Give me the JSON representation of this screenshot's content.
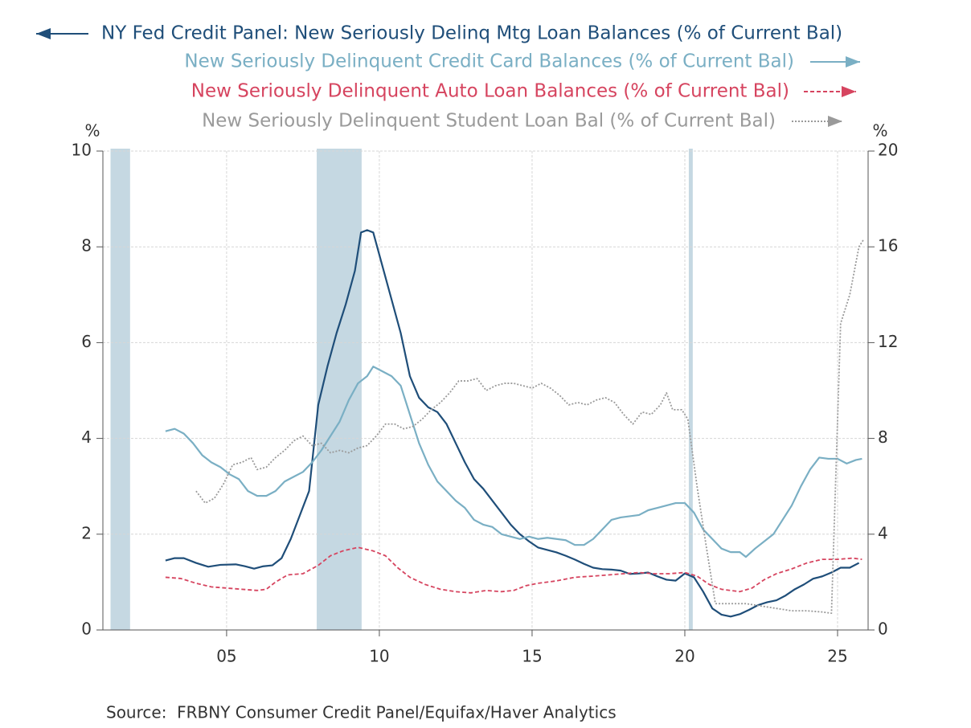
{
  "chart_data": {
    "type": "line",
    "y_unit": "%",
    "y2_unit": "%",
    "source": "Source:  FRBNY Consumer Credit Panel/Equifax/Haver Analytics",
    "xlim": [
      2000.95,
      2026.0
    ],
    "xticks": [
      {
        "value": 2005,
        "label": "05"
      },
      {
        "value": 2010,
        "label": "10"
      },
      {
        "value": 2015,
        "label": "15"
      },
      {
        "value": 2020,
        "label": "20"
      },
      {
        "value": 2025,
        "label": "25"
      }
    ],
    "ylim": [
      0,
      10
    ],
    "yticks": [
      0,
      2,
      4,
      6,
      8,
      10
    ],
    "y2lim": [
      0,
      20
    ],
    "y2ticks": [
      0,
      4,
      8,
      12,
      16,
      20
    ],
    "grid": true,
    "recessions": [
      [
        2001.2,
        2001.84
      ],
      [
        2007.95,
        2009.42
      ],
      [
        2020.13,
        2020.26
      ]
    ],
    "recession_color": "#c5d8e2",
    "series": [
      {
        "name": "NY Fed Credit Panel: New Seriously Delinq Mtg Loan Balances (% of Current Bal)",
        "color": "#1f4e79",
        "line_style": "solid",
        "axis": "y",
        "x": [
          2003.0,
          2003.3,
          2003.6,
          2004.0,
          2004.4,
          2004.8,
          2005.3,
          2005.6,
          2005.9,
          2006.2,
          2006.5,
          2006.8,
          2007.1,
          2007.4,
          2007.7,
          2008.0,
          2008.3,
          2008.6,
          2008.9,
          2009.2,
          2009.4,
          2009.6,
          2009.8,
          2010.1,
          2010.4,
          2010.7,
          2011.0,
          2011.3,
          2011.6,
          2011.9,
          2012.2,
          2012.5,
          2012.8,
          2013.1,
          2013.4,
          2013.7,
          2014.0,
          2014.3,
          2014.6,
          2014.9,
          2015.2,
          2015.5,
          2015.8,
          2016.1,
          2016.4,
          2016.7,
          2017.0,
          2017.3,
          2017.6,
          2017.9,
          2018.2,
          2018.5,
          2018.8,
          2019.1,
          2019.4,
          2019.7,
          2020.0,
          2020.3,
          2020.6,
          2020.9,
          2021.2,
          2021.5,
          2021.8,
          2022.1,
          2022.4,
          2022.7,
          2023.0,
          2023.3,
          2023.6,
          2023.9,
          2024.2,
          2024.5,
          2024.8,
          2025.1,
          2025.4,
          2025.7
        ],
        "values": [
          1.45,
          1.5,
          1.5,
          1.4,
          1.32,
          1.36,
          1.37,
          1.33,
          1.28,
          1.33,
          1.35,
          1.5,
          1.9,
          2.4,
          2.9,
          4.7,
          5.5,
          6.2,
          6.8,
          7.5,
          8.3,
          8.35,
          8.3,
          7.6,
          6.9,
          6.2,
          5.3,
          4.85,
          4.65,
          4.55,
          4.3,
          3.9,
          3.5,
          3.15,
          2.95,
          2.7,
          2.45,
          2.2,
          2.0,
          1.85,
          1.72,
          1.67,
          1.62,
          1.55,
          1.47,
          1.38,
          1.3,
          1.27,
          1.26,
          1.24,
          1.17,
          1.18,
          1.2,
          1.12,
          1.05,
          1.03,
          1.18,
          1.1,
          0.8,
          0.45,
          0.32,
          0.28,
          0.33,
          0.42,
          0.52,
          0.58,
          0.62,
          0.72,
          0.85,
          0.95,
          1.07,
          1.12,
          1.2,
          1.3,
          1.3,
          1.4
        ]
      },
      {
        "name": "New Seriously Delinquent Credit Card Balances (% of Current Bal)",
        "color": "#7aafc4",
        "line_style": "solid",
        "axis": "y2",
        "x": [
          2003.0,
          2003.3,
          2003.6,
          2003.9,
          2004.2,
          2004.5,
          2004.8,
          2005.1,
          2005.4,
          2005.7,
          2006.0,
          2006.3,
          2006.6,
          2006.9,
          2007.2,
          2007.5,
          2007.8,
          2008.1,
          2008.4,
          2008.7,
          2009.0,
          2009.3,
          2009.6,
          2009.8,
          2010.1,
          2010.4,
          2010.7,
          2011.0,
          2011.3,
          2011.6,
          2011.9,
          2012.2,
          2012.5,
          2012.8,
          2013.1,
          2013.4,
          2013.7,
          2014.0,
          2014.3,
          2014.6,
          2014.9,
          2015.2,
          2015.5,
          2015.8,
          2016.1,
          2016.4,
          2016.7,
          2017.0,
          2017.3,
          2017.6,
          2017.9,
          2018.2,
          2018.5,
          2018.8,
          2019.1,
          2019.4,
          2019.7,
          2020.0,
          2020.3,
          2020.6,
          2020.9,
          2021.2,
          2021.5,
          2021.8,
          2022.0,
          2022.3,
          2022.6,
          2022.9,
          2023.2,
          2023.5,
          2023.8,
          2024.1,
          2024.4,
          2024.7,
          2025.0,
          2025.3,
          2025.6,
          2025.8
        ],
        "values": [
          8.3,
          8.4,
          8.2,
          7.8,
          7.3,
          7.0,
          6.8,
          6.5,
          6.3,
          5.8,
          5.6,
          5.6,
          5.8,
          6.2,
          6.4,
          6.6,
          7.0,
          7.5,
          8.1,
          8.7,
          9.6,
          10.3,
          10.6,
          11.0,
          10.8,
          10.6,
          10.2,
          9.0,
          7.8,
          6.9,
          6.2,
          5.8,
          5.4,
          5.1,
          4.6,
          4.4,
          4.3,
          4.0,
          3.9,
          3.8,
          3.9,
          3.8,
          3.85,
          3.8,
          3.75,
          3.55,
          3.55,
          3.8,
          4.2,
          4.6,
          4.7,
          4.75,
          4.8,
          5.0,
          5.1,
          5.2,
          5.3,
          5.3,
          4.9,
          4.2,
          3.8,
          3.4,
          3.25,
          3.25,
          3.05,
          3.4,
          3.7,
          4.0,
          4.6,
          5.2,
          6.0,
          6.7,
          7.2,
          7.15,
          7.15,
          6.95,
          7.1,
          7.15
        ]
      },
      {
        "name": "New Seriously Delinquent Auto Loan Balances (% of Current Bal)",
        "color": "#d6445f",
        "line_style": "dashed",
        "axis": "y2",
        "x": [
          2003.0,
          2003.5,
          2004.0,
          2004.5,
          2005.0,
          2005.5,
          2006.0,
          2006.3,
          2006.6,
          2007.0,
          2007.5,
          2008.0,
          2008.4,
          2008.8,
          2009.3,
          2009.8,
          2010.2,
          2010.6,
          2011.0,
          2011.5,
          2012.0,
          2012.5,
          2013.0,
          2013.5,
          2014.0,
          2014.4,
          2014.8,
          2015.2,
          2015.8,
          2016.4,
          2017.0,
          2017.5,
          2018.0,
          2018.5,
          2019.0,
          2019.5,
          2020.0,
          2020.4,
          2020.8,
          2021.2,
          2021.8,
          2022.2,
          2022.6,
          2023.0,
          2023.5,
          2024.0,
          2024.5,
          2025.0,
          2025.5,
          2025.8
        ],
        "values": [
          2.2,
          2.15,
          1.95,
          1.8,
          1.75,
          1.7,
          1.65,
          1.7,
          2.0,
          2.3,
          2.35,
          2.7,
          3.1,
          3.3,
          3.45,
          3.3,
          3.1,
          2.6,
          2.2,
          1.9,
          1.7,
          1.6,
          1.55,
          1.65,
          1.6,
          1.65,
          1.85,
          1.95,
          2.05,
          2.2,
          2.25,
          2.3,
          2.35,
          2.4,
          2.35,
          2.35,
          2.4,
          2.25,
          1.9,
          1.7,
          1.6,
          1.75,
          2.1,
          2.35,
          2.55,
          2.8,
          2.95,
          2.95,
          3.0,
          2.95
        ]
      },
      {
        "name": "New Seriously Delinquent Student Loan Bal (% of Current Bal)",
        "color": "#9a9a9a",
        "line_style": "dotted",
        "axis": "y2",
        "x": [
          2004.0,
          2004.3,
          2004.6,
          2004.9,
          2005.2,
          2005.5,
          2005.8,
          2006.0,
          2006.3,
          2006.6,
          2006.9,
          2007.2,
          2007.5,
          2007.8,
          2008.1,
          2008.4,
          2008.7,
          2009.0,
          2009.3,
          2009.6,
          2009.9,
          2010.2,
          2010.5,
          2010.8,
          2011.1,
          2011.4,
          2011.7,
          2012.0,
          2012.3,
          2012.6,
          2012.9,
          2013.2,
          2013.5,
          2013.8,
          2014.1,
          2014.4,
          2014.7,
          2015.0,
          2015.3,
          2015.6,
          2015.9,
          2016.2,
          2016.5,
          2016.8,
          2017.1,
          2017.4,
          2017.7,
          2018.0,
          2018.3,
          2018.6,
          2018.9,
          2019.2,
          2019.4,
          2019.6,
          2019.9,
          2020.1,
          2020.4,
          2020.7,
          2021.0,
          2021.5,
          2022.0,
          2022.5,
          2023.0,
          2023.5,
          2024.0,
          2024.5,
          2024.8,
          2025.1,
          2025.4,
          2025.7,
          2025.85
        ],
        "values": [
          5.8,
          5.3,
          5.5,
          6.1,
          6.9,
          7.0,
          7.2,
          6.7,
          6.8,
          7.2,
          7.5,
          7.9,
          8.1,
          7.7,
          7.8,
          7.4,
          7.5,
          7.4,
          7.6,
          7.7,
          8.1,
          8.6,
          8.6,
          8.4,
          8.5,
          8.8,
          9.2,
          9.5,
          9.9,
          10.4,
          10.4,
          10.5,
          10.0,
          10.2,
          10.3,
          10.3,
          10.2,
          10.1,
          10.3,
          10.1,
          9.8,
          9.4,
          9.5,
          9.4,
          9.6,
          9.7,
          9.5,
          9.0,
          8.6,
          9.1,
          9.0,
          9.4,
          9.9,
          9.2,
          9.2,
          8.8,
          6.0,
          3.5,
          1.1,
          1.1,
          1.1,
          1.0,
          0.9,
          0.8,
          0.8,
          0.75,
          0.7,
          12.8,
          14.0,
          16.0,
          16.3
        ]
      }
    ]
  }
}
